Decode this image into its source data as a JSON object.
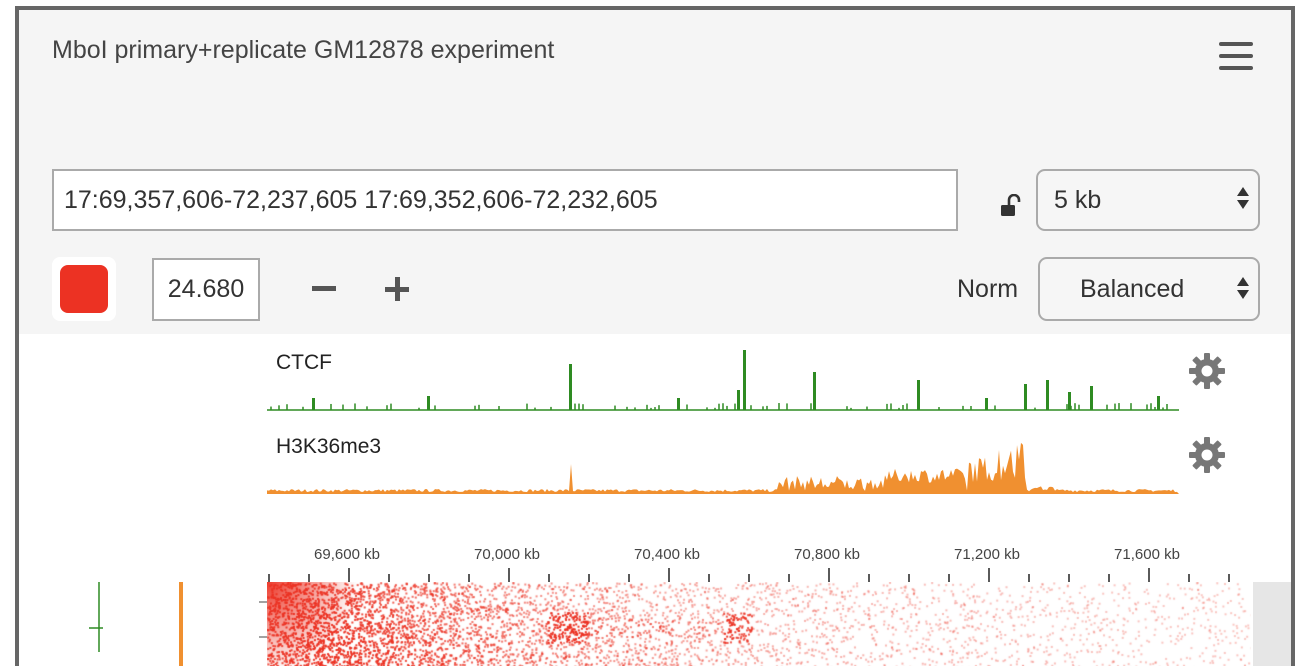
{
  "header": {
    "title": "MboI primary+replicate GM12878 experiment"
  },
  "locus": {
    "value": "17:69,357,606-72,237,605 17:69,352,606-72,232,605"
  },
  "resolution": {
    "selected": "5 kb"
  },
  "color": {
    "swatch": "#ec3223"
  },
  "contrast": {
    "value": "24.680"
  },
  "normalization": {
    "label": "Norm",
    "selected": "Balanced"
  },
  "tracks": [
    {
      "name": "CTCF",
      "color": "#2e8b22"
    },
    {
      "name": "H3K36me3",
      "color": "#f09030"
    }
  ],
  "ruler": {
    "ticks": [
      "69,600 kb",
      "70,000 kb",
      "70,400 kb",
      "70,800 kb",
      "71,200 kb",
      "71,600 kb"
    ]
  },
  "icons": {
    "menu": "hamburger-menu-icon",
    "lock": "unlock-icon",
    "gear": "gear-icon"
  }
}
